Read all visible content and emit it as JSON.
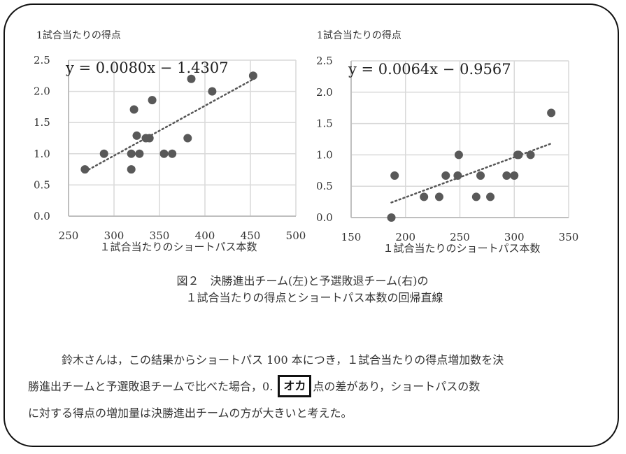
{
  "figure": {
    "caption_line1": "図２　決勝進出チーム(左)と予選敗退チーム(右)の",
    "caption_line2": "１試合当たりの得点とショートパス本数の回帰直線"
  },
  "paragraph": {
    "line1": "鈴木さんは，この結果からショートパス 100 本につき，１試合当たりの得点増加数を決",
    "line2_before": "勝進出チームと予選敗退チームで比べた場合，0.",
    "answer_box": "オカ",
    "line2_after": "点の差があり，ショートパスの数",
    "line3": "に対する得点の増加量は決勝進出チームの方が大きいと考えた。"
  },
  "chart_data": [
    {
      "type": "scatter",
      "title": "決勝進出チーム(左)",
      "ylabel": "1試合当たりの得点",
      "xlabel": "１試合当たりのショートパス本数",
      "xlim": [
        250,
        500
      ],
      "ylim": [
        0,
        2.5
      ],
      "xticks": [
        "250",
        "300",
        "350",
        "400",
        "450",
        "500"
      ],
      "yticks": [
        "0.0",
        "0.5",
        "1.0",
        "1.5",
        "2.0",
        "2.5"
      ],
      "grid": true,
      "annotation": "y = 0.0080x − 1.4307",
      "trendline": {
        "slope": 0.008,
        "intercept": -1.4307,
        "x_range": [
          268,
          453
        ],
        "style": "dotted"
      },
      "points": [
        [
          268,
          0.75
        ],
        [
          289,
          1.0
        ],
        [
          319,
          1.0
        ],
        [
          319,
          0.75
        ],
        [
          322,
          1.71
        ],
        [
          325,
          1.29
        ],
        [
          328,
          1.0
        ],
        [
          335,
          1.25
        ],
        [
          339,
          1.25
        ],
        [
          342,
          1.86
        ],
        [
          355,
          1.0
        ],
        [
          364,
          1.0
        ],
        [
          381,
          1.25
        ],
        [
          385,
          2.2
        ],
        [
          408,
          2.0
        ],
        [
          453,
          2.25
        ]
      ]
    },
    {
      "type": "scatter",
      "title": "予選敗退チーム(右)",
      "ylabel": "1試合当たりの得点",
      "xlabel": "１試合当たりのショートパス本数",
      "xlim": [
        150,
        350
      ],
      "ylim": [
        0,
        2.5
      ],
      "xticks": [
        "150",
        "200",
        "250",
        "300",
        "350"
      ],
      "yticks": [
        "0.0",
        "0.5",
        "1.0",
        "1.5",
        "2.0",
        "2.5"
      ],
      "grid": true,
      "annotation": "y = 0.0064x − 0.9567",
      "trendline": {
        "slope": 0.0064,
        "intercept": -0.9567,
        "x_range": [
          187,
          334
        ],
        "style": "dotted"
      },
      "points": [
        [
          187,
          0.0
        ],
        [
          190,
          0.67
        ],
        [
          217,
          0.33
        ],
        [
          231,
          0.33
        ],
        [
          237,
          0.67
        ],
        [
          248,
          0.67
        ],
        [
          249,
          1.0
        ],
        [
          265,
          0.33
        ],
        [
          269,
          0.67
        ],
        [
          278,
          0.33
        ],
        [
          293,
          0.67
        ],
        [
          300,
          0.67
        ],
        [
          303,
          1.0
        ],
        [
          304,
          1.0
        ],
        [
          315,
          1.0
        ],
        [
          334,
          1.67
        ]
      ]
    }
  ]
}
